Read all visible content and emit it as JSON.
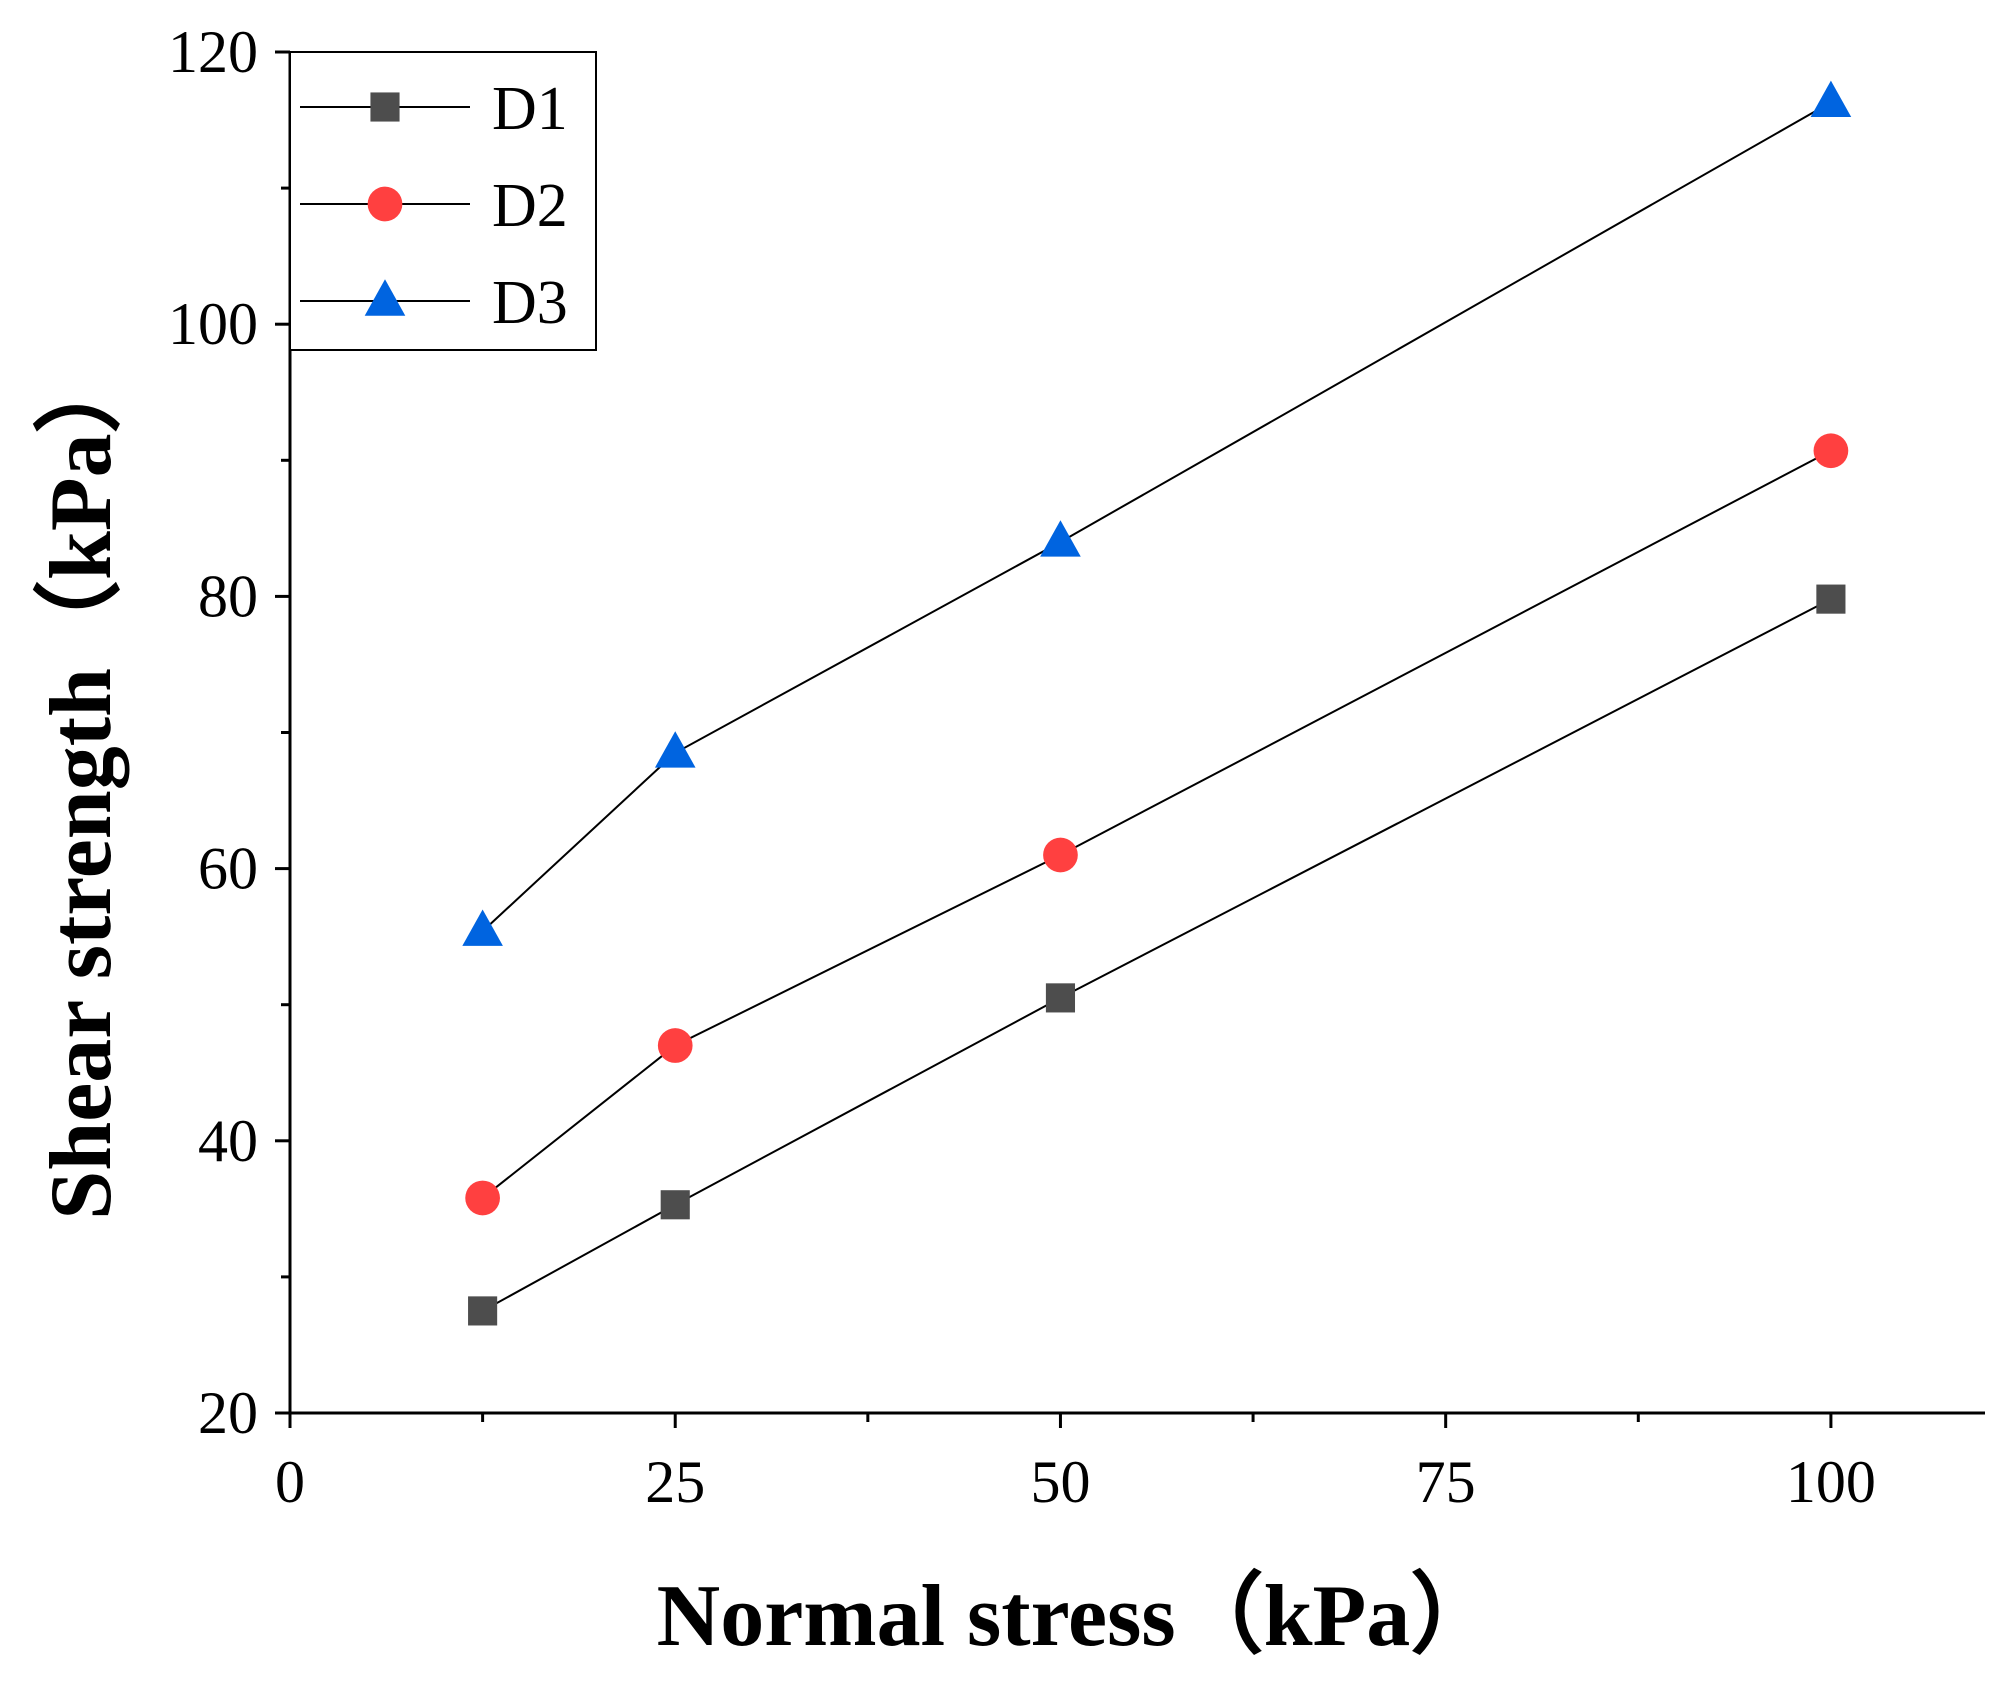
{
  "chart_data": {
    "type": "line",
    "xlabel": "Normal stress（kPa）",
    "ylabel": "Shear strength（kPa）",
    "xlim": [
      0,
      110
    ],
    "ylim": [
      20,
      120
    ],
    "x_ticks": [
      0,
      25,
      50,
      75,
      100
    ],
    "x_minor_ticks": [
      12.5,
      37.5,
      62.5,
      87.5
    ],
    "y_ticks": [
      20,
      40,
      60,
      80,
      100,
      120
    ],
    "y_minor_ticks": [
      30,
      50,
      70,
      90,
      110
    ],
    "grid": false,
    "legend_position": "top-left",
    "series": [
      {
        "name": "D1",
        "marker": "square",
        "color": "#4d4d4d",
        "x": [
          12.5,
          25,
          50,
          100
        ],
        "y": [
          27.5,
          35.3,
          50.5,
          79.8
        ]
      },
      {
        "name": "D2",
        "marker": "circle",
        "color": "#ff4040",
        "x": [
          12.5,
          25,
          50,
          100
        ],
        "y": [
          35.8,
          47.0,
          61.0,
          90.7
        ]
      },
      {
        "name": "D3",
        "marker": "triangle",
        "color": "#0064e0",
        "x": [
          12.5,
          25,
          50,
          100
        ],
        "y": [
          55.4,
          68.5,
          84.0,
          116.3
        ]
      }
    ]
  }
}
